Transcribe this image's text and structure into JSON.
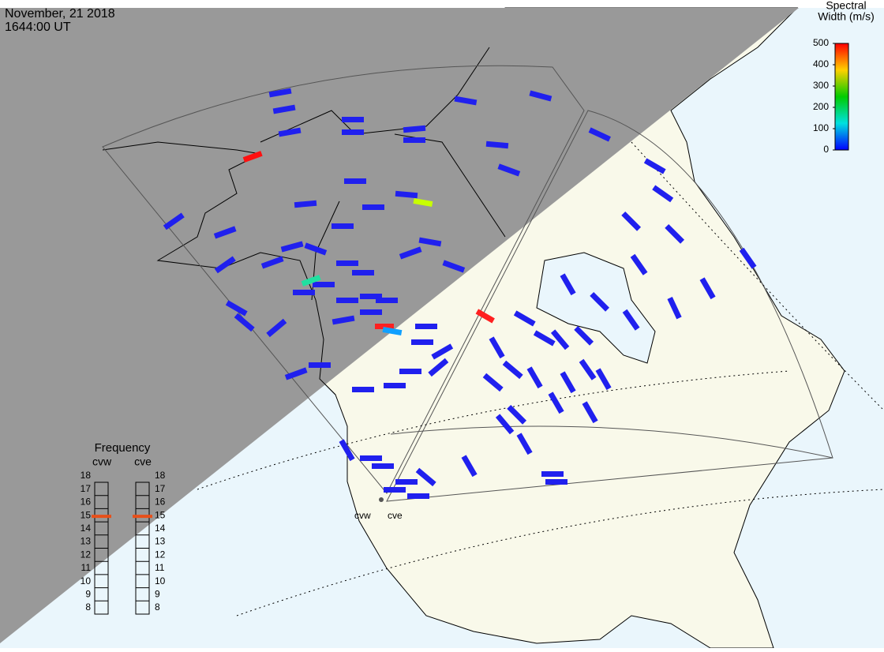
{
  "header": {
    "date": "November, 21 2018",
    "time": "1644:00 UT"
  },
  "colorbar": {
    "title_lines": [
      "Spectral",
      "Width (m/s)"
    ],
    "range": [
      0,
      500
    ],
    "ticks": [
      0,
      100,
      200,
      300,
      400,
      500
    ]
  },
  "frequency": {
    "title": "Frequency",
    "range": [
      8,
      18
    ],
    "ticks": [
      8,
      9,
      10,
      11,
      12,
      13,
      14,
      15,
      16,
      17,
      18
    ],
    "radars": [
      {
        "name": "cvw",
        "value": 15
      },
      {
        "name": "cve",
        "value": 15
      }
    ]
  }
}
